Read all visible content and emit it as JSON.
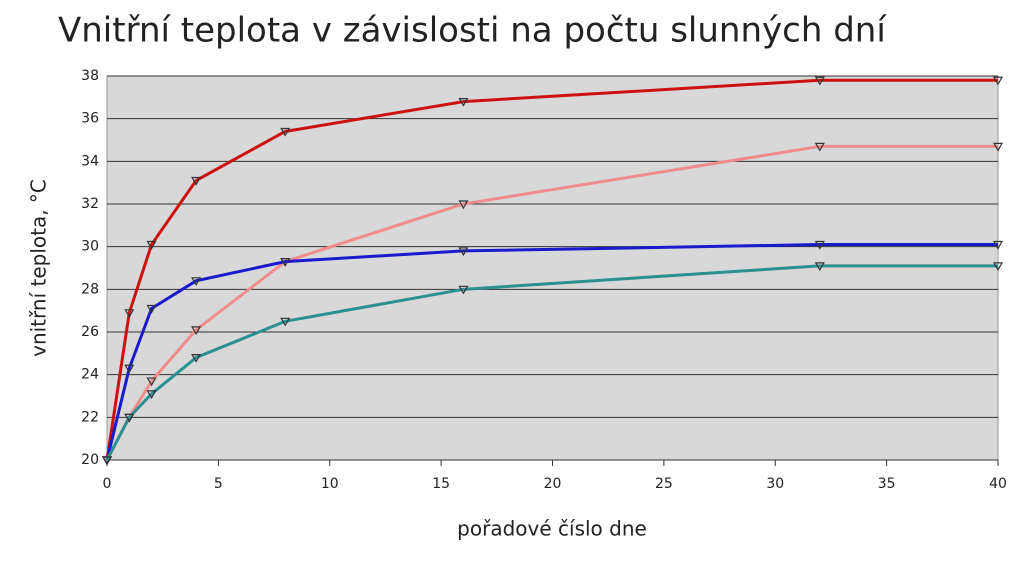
{
  "chart_data": {
    "type": "line",
    "title": "Vnitřní teplota v závislosti na počtu slunných dní",
    "x_label": "pořadové číslo dne",
    "y_label": "vnitřní teplota, °C",
    "x": [
      0,
      1,
      2,
      4,
      8,
      16,
      32,
      40
    ],
    "series": [
      {
        "color": "#cc1111",
        "values": [
          20,
          26.9,
          30.1,
          33.1,
          35.4,
          36.8,
          37.8,
          37.8
        ]
      },
      {
        "color": "#f08c8c",
        "values": [
          20,
          22,
          23.7,
          26.1,
          29.3,
          32,
          34.7,
          34.7
        ]
      },
      {
        "color": "#1a1acc",
        "values": [
          20,
          24.3,
          27.1,
          28.4,
          29.3,
          29.8,
          30.1,
          30.1
        ]
      },
      {
        "color": "#2a9090",
        "values": [
          20,
          22,
          23.1,
          24.8,
          26.5,
          28,
          29.1,
          29.1
        ]
      }
    ],
    "xlim": [
      0,
      40
    ],
    "xticks": [
      0,
      5,
      10,
      15,
      20,
      25,
      30,
      35,
      40
    ],
    "ylim": [
      20,
      38
    ],
    "yticks": [
      20,
      22,
      24,
      26,
      28,
      30,
      32,
      34,
      36,
      38
    ],
    "grid": true
  }
}
